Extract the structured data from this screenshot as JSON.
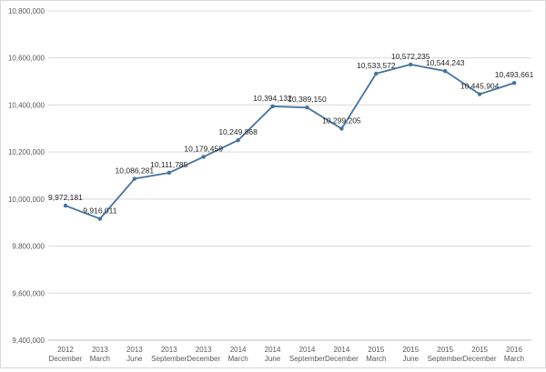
{
  "chart_data": {
    "type": "line",
    "title": "",
    "xlabel": "",
    "ylabel": "",
    "ylim": [
      9400000,
      10800000
    ],
    "y_ticks": [
      "9,400,000",
      "9,600,000",
      "9,800,000",
      "10,000,000",
      "10,200,000",
      "10,400,000",
      "10,600,000",
      "10,800,000"
    ],
    "y_tick_values": [
      9400000,
      9600000,
      9800000,
      10000000,
      10200000,
      10400000,
      10600000,
      10800000
    ],
    "gridlines": true,
    "legend": "none",
    "line_color": "#44729E",
    "categories": [
      {
        "year": "2012",
        "month": "December"
      },
      {
        "year": "2013",
        "month": "March"
      },
      {
        "year": "2013",
        "month": "June"
      },
      {
        "year": "2013",
        "month": "September"
      },
      {
        "year": "2013",
        "month": "December"
      },
      {
        "year": "2014",
        "month": "March"
      },
      {
        "year": "2014",
        "month": "June"
      },
      {
        "year": "2014",
        "month": "September"
      },
      {
        "year": "2014",
        "month": "December"
      },
      {
        "year": "2015",
        "month": "March"
      },
      {
        "year": "2015",
        "month": "June"
      },
      {
        "year": "2015",
        "month": "September"
      },
      {
        "year": "2015",
        "month": "December"
      },
      {
        "year": "2016",
        "month": "March"
      }
    ],
    "values": [
      9972181,
      9916011,
      10086281,
      10111785,
      10179459,
      10249868,
      10394132,
      10389150,
      10299205,
      10533572,
      10572235,
      10544243,
      10445904,
      10493661
    ],
    "data_labels": [
      "9,972,181",
      "9,916,011",
      "10,086,281",
      "10,111,785",
      "10,179,459",
      "10,249,868",
      "10,394,132",
      "10,389,150",
      "10,299,205",
      "10,533,572",
      "10,572,235",
      "10,544,243",
      "10,445,904",
      "10,493,661"
    ]
  }
}
